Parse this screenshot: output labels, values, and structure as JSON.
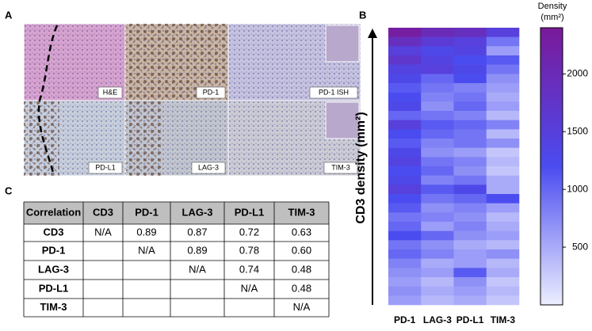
{
  "panel_a": {
    "label": "A",
    "images": [
      "H&E",
      "PD-1",
      "PD-1 ISH",
      "PD-L1",
      "LAG-3",
      "TIM-3"
    ]
  },
  "panel_b": {
    "label": "B",
    "ylabel": "CD3 density (mm²)",
    "columns": [
      "PD-1",
      "LAG-3",
      "PD-L1",
      "TIM-3"
    ],
    "values": [
      [
        2300,
        2000,
        1900,
        1500
      ],
      [
        1900,
        1600,
        1500,
        900
      ],
      [
        1500,
        1300,
        1400,
        600
      ],
      [
        1700,
        1400,
        1200,
        1100
      ],
      [
        1400,
        1500,
        1300,
        900
      ],
      [
        1300,
        1000,
        1200,
        700
      ],
      [
        1100,
        900,
        800,
        600
      ],
      [
        1200,
        800,
        900,
        500
      ],
      [
        1300,
        700,
        1000,
        600
      ],
      [
        1000,
        900,
        800,
        400
      ],
      [
        1500,
        1100,
        1000,
        800
      ],
      [
        1200,
        1000,
        900,
        400
      ],
      [
        1100,
        800,
        900,
        700
      ],
      [
        1300,
        700,
        600,
        300
      ],
      [
        1400,
        900,
        800,
        400
      ],
      [
        1200,
        1000,
        700,
        300
      ],
      [
        1300,
        800,
        900,
        500
      ],
      [
        1500,
        1100,
        1300,
        500
      ],
      [
        1200,
        900,
        1000,
        1200
      ],
      [
        1100,
        700,
        800,
        600
      ],
      [
        900,
        800,
        700,
        400
      ],
      [
        1000,
        600,
        800,
        500
      ],
      [
        1200,
        1000,
        700,
        600
      ],
      [
        900,
        700,
        500,
        400
      ],
      [
        1000,
        800,
        600,
        700
      ],
      [
        800,
        500,
        600,
        400
      ],
      [
        700,
        600,
        1100,
        500
      ],
      [
        600,
        400,
        700,
        300
      ],
      [
        700,
        500,
        600,
        400
      ],
      [
        600,
        400,
        500,
        300
      ]
    ],
    "colorbar": {
      "title": [
        "Density",
        "(mm²)"
      ],
      "lim": [
        0,
        2400
      ],
      "ticks": [
        500,
        1000,
        1500,
        2000
      ],
      "colormap": [
        "#eceeff",
        "#4b4cf0",
        "#7a1a9a"
      ]
    }
  },
  "panel_c": {
    "label": "C",
    "header": [
      "Correlation",
      "CD3",
      "PD-1",
      "LAG-3",
      "PD-L1",
      "TIM-3"
    ],
    "rows": [
      [
        "CD3",
        "N/A",
        "0.89",
        "0.87",
        "0.72",
        "0.63"
      ],
      [
        "PD-1",
        null,
        "N/A",
        "0.89",
        "0.78",
        "0.60"
      ],
      [
        "LAG-3",
        null,
        null,
        "N/A",
        "0.74",
        "0.48"
      ],
      [
        "PD-L1",
        null,
        null,
        null,
        "N/A",
        "0.48"
      ],
      [
        "TIM-3",
        null,
        null,
        null,
        null,
        "N/A"
      ]
    ]
  }
}
